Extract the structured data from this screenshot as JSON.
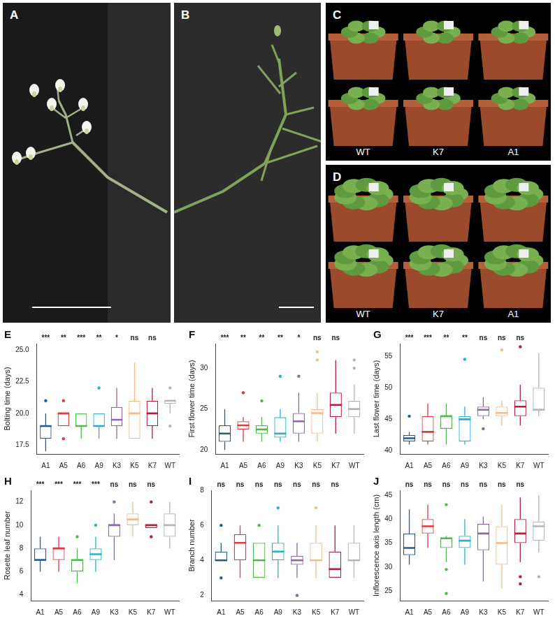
{
  "photos": [
    {
      "panel": "A"
    },
    {
      "panel": "B"
    },
    {
      "panel": "C",
      "pot_labels": [
        "WT",
        "K7",
        "A1"
      ]
    },
    {
      "panel": "D",
      "pot_labels": [
        "WT",
        "K7",
        "A1"
      ]
    }
  ],
  "chart_data": [
    {
      "panel": "E",
      "type": "box",
      "ylabel": "Bolting time (days)",
      "categories": [
        "A1",
        "A5",
        "A6",
        "A9",
        "K3",
        "K5",
        "K7",
        "WT"
      ],
      "colors": [
        "#1f5c99",
        "#e0393e",
        "#4cbb4c",
        "#2bb0c8",
        "#8e63b0",
        "#f5b98a",
        "#b0203a",
        "#b5b5b5"
      ],
      "ylim": [
        16.8,
        25.5
      ],
      "yticks": [
        17.5,
        {
          "value": 20,
          "label": "20.0"
        },
        22.5,
        {
          "value": 25,
          "label": "25.0"
        }
      ],
      "grid": false,
      "stats": [
        {
          "min": 17,
          "q1": 18,
          "median": 19,
          "q3": 19,
          "max": 20,
          "outliers": [
            21
          ]
        },
        {
          "min": 19,
          "q1": 19,
          "median": 20,
          "q3": 20,
          "max": 20,
          "outliers": [
            18,
            21
          ]
        },
        {
          "min": 18,
          "q1": 19,
          "median": 19,
          "q3": 20,
          "max": 20,
          "outliers": []
        },
        {
          "min": 18,
          "q1": 19,
          "median": 19,
          "q3": 20,
          "max": 20,
          "outliers": [
            22
          ]
        },
        {
          "min": 18,
          "q1": 19,
          "median": 19.5,
          "q3": 20.5,
          "max": 22,
          "outliers": []
        },
        {
          "min": 18,
          "q1": 18,
          "median": 20,
          "q3": 21,
          "max": 24,
          "outliers": []
        },
        {
          "min": 18,
          "q1": 19,
          "median": 20,
          "q3": 21,
          "max": 22,
          "outliers": []
        },
        {
          "min": 20,
          "q1": 20.75,
          "median": 21,
          "q3": 21,
          "max": 21,
          "outliers": [
            19,
            22
          ]
        }
      ],
      "significance": [
        "***",
        "**",
        "***",
        "**",
        "*",
        "ns",
        "ns",
        ""
      ]
    },
    {
      "panel": "F",
      "type": "box",
      "ylabel": "First flower time (days)",
      "categories": [
        "A1",
        "A5",
        "A6",
        "A9",
        "K3",
        "K5",
        "K7",
        "WT"
      ],
      "colors": [
        "#1f5c99",
        "#e0393e",
        "#4cbb4c",
        "#2bb0c8",
        "#8e63b0",
        "#f5b98a",
        "#b0203a",
        "#b5b5b5"
      ],
      "ylim": [
        19.5,
        33
      ],
      "yticks": [
        20,
        25,
        30
      ],
      "grid": false,
      "stats": [
        {
          "min": 20,
          "q1": 21,
          "median": 22,
          "q3": 23,
          "max": 25,
          "outliers": []
        },
        {
          "min": 21,
          "q1": 22.5,
          "median": 23,
          "q3": 23.5,
          "max": 24,
          "outliers": [
            27
          ]
        },
        {
          "min": 21,
          "q1": 22,
          "median": 22.5,
          "q3": 23,
          "max": 24,
          "outliers": [
            26
          ]
        },
        {
          "min": 21,
          "q1": 21.5,
          "median": 22,
          "q3": 24,
          "max": 25,
          "outliers": [
            29
          ]
        },
        {
          "min": 21,
          "q1": 22,
          "median": 23.5,
          "q3": 24.5,
          "max": 27,
          "outliers": [
            29
          ]
        },
        {
          "min": 21,
          "q1": 22,
          "median": 24.5,
          "q3": 25,
          "max": 27,
          "outliers": [
            31,
            32
          ]
        },
        {
          "min": 22,
          "q1": 24,
          "median": 25.5,
          "q3": 27,
          "max": 31,
          "outliers": []
        },
        {
          "min": 22,
          "q1": 24,
          "median": 25,
          "q3": 26,
          "max": 28,
          "outliers": [
            30,
            31
          ]
        }
      ],
      "significance": [
        "***",
        "**",
        "**",
        "**",
        "*",
        "ns",
        "ns",
        ""
      ]
    },
    {
      "panel": "G",
      "type": "box",
      "ylabel": "Last flower time (days)",
      "categories": [
        "A1",
        "A5",
        "A6",
        "A9",
        "K3",
        "K5",
        "K7",
        "WT"
      ],
      "colors": [
        "#1f5c99",
        "#e0393e",
        "#4cbb4c",
        "#2bb0c8",
        "#8e63b0",
        "#f5b98a",
        "#b0203a",
        "#b5b5b5"
      ],
      "ylim": [
        39.5,
        57
      ],
      "yticks": [
        40,
        45,
        50,
        55
      ],
      "grid": false,
      "stats": [
        {
          "min": 41,
          "q1": 41.5,
          "median": 42,
          "q3": 42.5,
          "max": 43,
          "outliers": [
            45.5
          ]
        },
        {
          "min": 41,
          "q1": 41.5,
          "median": 43,
          "q3": 45.5,
          "max": 47.5,
          "outliers": []
        },
        {
          "min": 41,
          "q1": 43.5,
          "median": 45.5,
          "q3": 45.5,
          "max": 47.5,
          "outliers": []
        },
        {
          "min": 41,
          "q1": 41.5,
          "median": 45,
          "q3": 45.5,
          "max": 47,
          "outliers": [
            54.5
          ]
        },
        {
          "min": 45,
          "q1": 45.5,
          "median": 46.5,
          "q3": 47,
          "max": 48.5,
          "outliers": [
            43.5
          ]
        },
        {
          "min": 44,
          "q1": 45.5,
          "median": 46,
          "q3": 47,
          "max": 48,
          "outliers": [
            56
          ]
        },
        {
          "min": 44,
          "q1": 45.5,
          "median": 47,
          "q3": 48,
          "max": 50.5,
          "outliers": [
            56.5
          ]
        },
        {
          "min": 45.5,
          "q1": 46.5,
          "median": 46.5,
          "q3": 50,
          "max": 55.5,
          "outliers": []
        }
      ],
      "significance": [
        "***",
        "***",
        "**",
        "**",
        "ns",
        "ns",
        "ns",
        ""
      ]
    },
    {
      "panel": "H",
      "type": "box",
      "ylabel": "Rosette leaf number",
      "categories": [
        "A1",
        "A5",
        "A6",
        "A9",
        "K3",
        "K5",
        "K7",
        "WT"
      ],
      "colors": [
        "#1f5c99",
        "#e0393e",
        "#4cbb4c",
        "#2bb0c8",
        "#8e63b0",
        "#f5b98a",
        "#b0203a",
        "#b5b5b5"
      ],
      "ylim": [
        3.5,
        13
      ],
      "yticks": [
        4,
        6,
        8,
        10,
        12
      ],
      "grid": false,
      "stats": [
        {
          "min": 6,
          "q1": 7,
          "median": 7,
          "q3": 8,
          "max": 9,
          "outliers": []
        },
        {
          "min": 6,
          "q1": 7,
          "median": 8,
          "q3": 8,
          "max": 9,
          "outliers": []
        },
        {
          "min": 5,
          "q1": 6,
          "median": 7,
          "q3": 7,
          "max": 8,
          "outliers": [
            9
          ]
        },
        {
          "min": 6,
          "q1": 7,
          "median": 7.5,
          "q3": 8,
          "max": 9,
          "outliers": [
            10
          ]
        },
        {
          "min": 7,
          "q1": 9,
          "median": 10,
          "q3": 10,
          "max": 11,
          "outliers": [
            12
          ]
        },
        {
          "min": 9,
          "q1": 10,
          "median": 10.5,
          "q3": 11,
          "max": 12,
          "outliers": []
        },
        {
          "min": 9.75,
          "q1": 9.75,
          "median": 10,
          "q3": 10,
          "max": 10,
          "outliers": [
            9,
            12
          ]
        },
        {
          "min": 8,
          "q1": 9,
          "median": 10,
          "q3": 11,
          "max": 12,
          "outliers": []
        }
      ],
      "significance": [
        "***",
        "***",
        "***",
        "***",
        "ns",
        "ns",
        "ns",
        ""
      ]
    },
    {
      "panel": "I",
      "type": "box",
      "ylabel": "Branch number",
      "categories": [
        "A1",
        "A5",
        "A6",
        "A9",
        "K3",
        "K5",
        "K7",
        "WT"
      ],
      "colors": [
        "#1f5c99",
        "#e0393e",
        "#4cbb4c",
        "#2bb0c8",
        "#8e63b0",
        "#f5b98a",
        "#b0203a",
        "#b5b5b5"
      ],
      "ylim": [
        1.7,
        8
      ],
      "yticks": [
        2,
        4,
        6,
        8
      ],
      "grid": false,
      "stats": [
        {
          "min": 4,
          "q1": 4,
          "median": 4,
          "q3": 4.5,
          "max": 5,
          "outliers": [
            3,
            6
          ]
        },
        {
          "min": 3,
          "q1": 4,
          "median": 5,
          "q3": 5.5,
          "max": 6,
          "outliers": []
        },
        {
          "min": 3,
          "q1": 3,
          "median": 4,
          "q3": 5,
          "max": 5,
          "outliers": [
            6
          ]
        },
        {
          "min": 3,
          "q1": 4,
          "median": 4.5,
          "q3": 5,
          "max": 6,
          "outliers": [
            7
          ]
        },
        {
          "min": 3,
          "q1": 3.75,
          "median": 4,
          "q3": 4.25,
          "max": 5,
          "outliers": [
            2
          ]
        },
        {
          "min": 3,
          "q1": 4,
          "median": 4,
          "q3": 5,
          "max": 6,
          "outliers": [
            7
          ]
        },
        {
          "min": 3,
          "q1": 3,
          "median": 3.5,
          "q3": 4.5,
          "max": 6,
          "outliers": []
        },
        {
          "min": 3,
          "q1": 4,
          "median": 4,
          "q3": 5,
          "max": 6,
          "outliers": []
        }
      ],
      "significance": [
        "ns",
        "ns",
        "ns",
        "ns",
        "ns",
        "ns",
        "ns",
        ""
      ]
    },
    {
      "panel": "J",
      "type": "box",
      "ylabel": "Inflorescence axis length (cm)",
      "categories": [
        "A1",
        "A5",
        "A6",
        "A9",
        "K3",
        "K5",
        "K7",
        "WT"
      ],
      "colors": [
        "#1f5c99",
        "#e0393e",
        "#4cbb4c",
        "#2bb0c8",
        "#8e63b0",
        "#f5b98a",
        "#b0203a",
        "#b5b5b5"
      ],
      "ylim": [
        23,
        46
      ],
      "yticks": [
        25,
        30,
        35,
        40,
        45
      ],
      "grid": false,
      "stats": [
        {
          "min": 30.5,
          "q1": 32.5,
          "median": 34,
          "q3": 37,
          "max": 42,
          "outliers": []
        },
        {
          "min": 34,
          "q1": 37,
          "median": 38.5,
          "q3": 40,
          "max": 43,
          "outliers": []
        },
        {
          "min": 31,
          "q1": 34,
          "median": 36,
          "q3": 36,
          "max": 36.5,
          "outliers": [
            43,
            29.5,
            24.5
          ]
        },
        {
          "min": 30.5,
          "q1": 34,
          "median": 35.5,
          "q3": 36.5,
          "max": 40,
          "outliers": []
        },
        {
          "min": 27,
          "q1": 33.5,
          "median": 37,
          "q3": 39,
          "max": 40.5,
          "outliers": []
        },
        {
          "min": 25.5,
          "q1": 30.5,
          "median": 35,
          "q3": 38.5,
          "max": 43,
          "outliers": []
        },
        {
          "min": 31,
          "q1": 35,
          "median": 37,
          "q3": 40,
          "max": 44.5,
          "outliers": [
            28,
            26.5
          ]
        },
        {
          "min": 33,
          "q1": 35.5,
          "median": 38.5,
          "q3": 39.5,
          "max": 45,
          "outliers": [
            28
          ]
        }
      ],
      "significance": [
        "ns",
        "ns",
        "ns",
        "ns",
        "ns",
        "ns",
        "ns",
        ""
      ]
    }
  ]
}
